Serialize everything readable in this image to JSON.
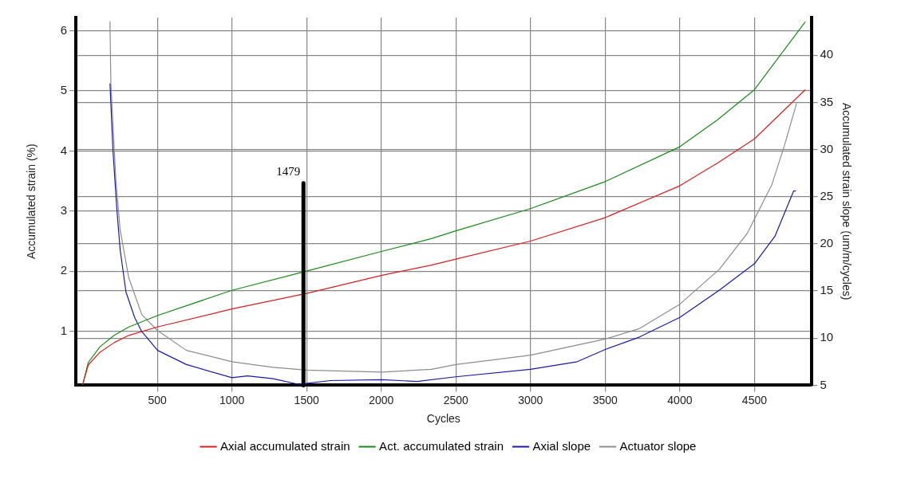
{
  "chart_data": {
    "type": "line",
    "xlabel": "Cycles",
    "ylabel": "Accumulated strain (%)",
    "y2label": "Accumulated strain slope (um/m/cycles)",
    "xlim": [
      -45,
      4880
    ],
    "xticks": [
      500,
      1000,
      1500,
      2000,
      2500,
      3000,
      3500,
      4000,
      4500
    ],
    "ylim": [
      0.1,
      6.22
    ],
    "yticks": [
      1,
      2,
      3,
      4,
      5,
      6
    ],
    "y2lim": [
      5,
      44
    ],
    "y2ticks": [
      5,
      10,
      15,
      20,
      25,
      30,
      35,
      40
    ],
    "grid": true,
    "legend": "bottom",
    "marker": "none",
    "line_style": "solid",
    "ref_lines": [
      {
        "axis": "x",
        "value": 1479,
        "label": "1479"
      }
    ],
    "series": [
      {
        "name": "Axial accumulated strain",
        "color": "#d42020",
        "x": [
          0,
          38,
          116,
          211,
          309,
          500,
          1000,
          1500,
          2006,
          2336,
          2500,
          3000,
          3500,
          4000,
          4253,
          4500,
          4840
        ],
        "values": [
          0.11,
          0.44,
          0.65,
          0.81,
          0.93,
          1.07,
          1.37,
          1.63,
          1.93,
          2.1,
          2.2,
          2.5,
          2.89,
          3.42,
          3.8,
          4.2,
          5.02
        ]
      },
      {
        "name": "Act. accumulated strain",
        "color": "#1a8a1a",
        "x": [
          0,
          38,
          116,
          211,
          309,
          500,
          1000,
          1500,
          2006,
          2336,
          2500,
          3000,
          3500,
          4000,
          4253,
          4500,
          4840
        ],
        "values": [
          0.11,
          0.48,
          0.74,
          0.93,
          1.07,
          1.26,
          1.68,
          2.0,
          2.33,
          2.54,
          2.67,
          3.04,
          3.49,
          4.07,
          4.52,
          5.02,
          6.15
        ]
      },
      {
        "name": "Axial slope",
        "color": "#1a1aa6",
        "axis": "y2",
        "x": [
          183,
          203,
          228,
          251,
          290,
          348,
          396,
          502,
          695,
          1000,
          1104,
          1275,
          1448,
          1660,
          2006,
          2240,
          2500,
          3000,
          3313,
          3500,
          3727,
          4000,
          4265,
          4500,
          4637,
          4762,
          4777
        ],
        "values": [
          37.0,
          29.9,
          23.9,
          19.4,
          14.9,
          12.2,
          10.7,
          8.7,
          7.2,
          5.8,
          6.0,
          5.7,
          5.1,
          5.5,
          5.6,
          5.4,
          5.9,
          6.7,
          7.5,
          8.8,
          10.1,
          12.2,
          15.1,
          17.9,
          20.8,
          25.6,
          25.6
        ]
      },
      {
        "name": "Actuator slope",
        "color": "#8c8c8c",
        "axis": "y2",
        "x": [
          183,
          189,
          193,
          222,
          251,
          309,
          396,
          502,
          695,
          1000,
          1275,
          1500,
          2006,
          2336,
          2500,
          3000,
          3500,
          3727,
          4000,
          4265,
          4451,
          4617,
          4700,
          4782
        ],
        "values": [
          43.6,
          37.0,
          35.8,
          26.9,
          21.5,
          16.4,
          12.5,
          10.8,
          8.7,
          7.5,
          6.9,
          6.6,
          6.4,
          6.7,
          7.2,
          8.2,
          9.9,
          11.0,
          13.6,
          17.3,
          21.1,
          26.3,
          30.4,
          34.9
        ]
      }
    ]
  }
}
